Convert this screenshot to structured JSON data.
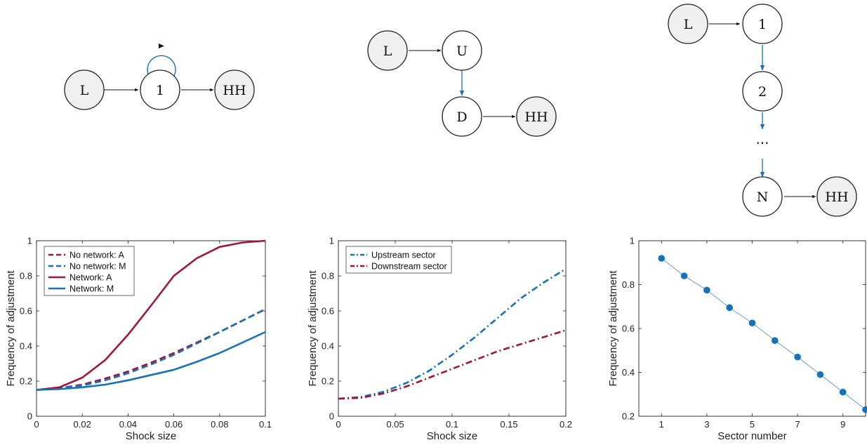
{
  "colors": {
    "red": "#A2143A",
    "blue": "#1672B8",
    "node_fill": "#EFEFEF",
    "node_stroke": "#222222"
  },
  "diagrams": {
    "d1": {
      "nodes": {
        "L": "L",
        "one": "1",
        "HH": "HH"
      }
    },
    "d2": {
      "nodes": {
        "L": "L",
        "U": "U",
        "D": "D",
        "HH": "HH"
      }
    },
    "d3": {
      "nodes": {
        "L": "L",
        "one": "1",
        "two": "2",
        "dots": "⋯",
        "N": "N",
        "HH": "HH"
      }
    }
  },
  "chart_data": [
    {
      "type": "line",
      "xlabel": "Shock size",
      "ylabel": "Frequency of adjustment",
      "xlim": [
        0,
        0.1
      ],
      "ylim": [
        0,
        1
      ],
      "xticks": [
        "0",
        "0.02",
        "0.04",
        "0.06",
        "0.08",
        "0.1"
      ],
      "yticks": [
        "0",
        "0.2",
        "0.4",
        "0.6",
        "0.8",
        "1"
      ],
      "legend_position": "top-left",
      "x": [
        0,
        0.01,
        0.02,
        0.03,
        0.04,
        0.05,
        0.06,
        0.07,
        0.08,
        0.09,
        0.1
      ],
      "series": [
        {
          "name": "No network: A",
          "color": "red",
          "style": "dashed",
          "values": [
            0.15,
            0.16,
            0.18,
            0.215,
            0.255,
            0.305,
            0.36,
            0.42,
            0.48,
            0.545,
            0.61
          ]
        },
        {
          "name": "No network: M",
          "color": "blue",
          "style": "dashed",
          "values": [
            0.15,
            0.16,
            0.175,
            0.205,
            0.245,
            0.295,
            0.35,
            0.415,
            0.48,
            0.545,
            0.61
          ]
        },
        {
          "name": "Network: A",
          "color": "red",
          "style": "solid",
          "values": [
            0.15,
            0.165,
            0.22,
            0.32,
            0.465,
            0.63,
            0.8,
            0.9,
            0.965,
            0.99,
            1.0
          ]
        },
        {
          "name": "Network: M",
          "color": "blue",
          "style": "solid",
          "values": [
            0.15,
            0.155,
            0.165,
            0.18,
            0.205,
            0.235,
            0.265,
            0.31,
            0.36,
            0.42,
            0.48
          ]
        }
      ]
    },
    {
      "type": "line",
      "xlabel": "Shock size",
      "ylabel": "Frequency of adjustment",
      "xlim": [
        0,
        0.2
      ],
      "ylim": [
        0,
        1
      ],
      "xticks": [
        "0",
        "0.05",
        "0.1",
        "0.15",
        "0.2"
      ],
      "yticks": [
        "0",
        "0.2",
        "0.4",
        "0.6",
        "0.8",
        "1"
      ],
      "legend_position": "top-left",
      "x": [
        0,
        0.02,
        0.04,
        0.06,
        0.08,
        0.1,
        0.12,
        0.14,
        0.16,
        0.18,
        0.2
      ],
      "series": [
        {
          "name": "Upstream sector",
          "color": "blue",
          "style": "dashdot",
          "values": [
            0.1,
            0.11,
            0.14,
            0.19,
            0.26,
            0.35,
            0.45,
            0.56,
            0.67,
            0.76,
            0.84
          ]
        },
        {
          "name": "Downstream sector",
          "color": "red",
          "style": "dashdot",
          "values": [
            0.1,
            0.105,
            0.13,
            0.17,
            0.22,
            0.27,
            0.32,
            0.37,
            0.41,
            0.45,
            0.49
          ]
        }
      ]
    },
    {
      "type": "scatter",
      "xlabel": "Sector number",
      "ylabel": "Frequency of adjustment",
      "xlim": [
        0,
        10
      ],
      "ylim": [
        0.2,
        1
      ],
      "xticks": [
        "1",
        "3",
        "5",
        "7",
        "9"
      ],
      "yticks": [
        "0.2",
        "0.4",
        "0.6",
        "0.8",
        "1"
      ],
      "x": [
        1,
        2,
        3,
        4,
        5,
        6,
        7,
        8,
        9,
        10
      ],
      "series": [
        {
          "color": "blue",
          "style": "markers+line",
          "values": [
            0.92,
            0.84,
            0.775,
            0.695,
            0.625,
            0.545,
            0.47,
            0.39,
            0.31,
            0.23
          ]
        }
      ]
    }
  ]
}
